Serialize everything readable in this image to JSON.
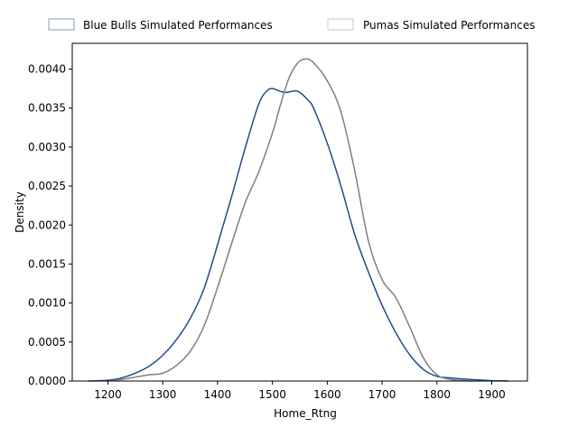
{
  "chart_data": {
    "type": "line",
    "title": "",
    "xlabel": "Home_Rtng",
    "ylabel": "Density",
    "xlim": [
      1135,
      1965
    ],
    "ylim": [
      0,
      0.00433
    ],
    "grid": false,
    "legend_position": "top",
    "x_ticks": [
      1200,
      1300,
      1400,
      1500,
      1600,
      1700,
      1800,
      1900
    ],
    "x_tick_labels": [
      "1200",
      "1300",
      "1400",
      "1500",
      "1600",
      "1700",
      "1800",
      "1900"
    ],
    "y_ticks": [
      0,
      0.0005,
      0.001,
      0.0015,
      0.002,
      0.0025,
      0.003,
      0.0035,
      0.004
    ],
    "y_tick_labels": [
      "0.0000",
      "0.0005",
      "0.0010",
      "0.0015",
      "0.0020",
      "0.0025",
      "0.0030",
      "0.0035",
      "0.0040"
    ],
    "legend": [
      {
        "label": "Blue Bulls Simulated Performances",
        "color": "#7a9cc6"
      },
      {
        "label": "Pumas Simulated Performances",
        "color": "#c8c8c8"
      }
    ],
    "series": [
      {
        "name": "Blue Bulls Simulated Performances",
        "color": "#1f4e8c",
        "points": [
          [
            1165,
            0.0
          ],
          [
            1200,
            1e-05
          ],
          [
            1225,
            4e-05
          ],
          [
            1250,
            0.0001
          ],
          [
            1275,
            0.00019
          ],
          [
            1300,
            0.00033
          ],
          [
            1325,
            0.00053
          ],
          [
            1350,
            0.0008
          ],
          [
            1375,
            0.00118
          ],
          [
            1400,
            0.00175
          ],
          [
            1425,
            0.00235
          ],
          [
            1450,
            0.00298
          ],
          [
            1475,
            0.00355
          ],
          [
            1490,
            0.00372
          ],
          [
            1500,
            0.00375
          ],
          [
            1512,
            0.00372
          ],
          [
            1525,
            0.0037
          ],
          [
            1540,
            0.00372
          ],
          [
            1550,
            0.0037
          ],
          [
            1565,
            0.0036
          ],
          [
            1575,
            0.0035
          ],
          [
            1600,
            0.00305
          ],
          [
            1625,
            0.0025
          ],
          [
            1650,
            0.00188
          ],
          [
            1675,
            0.0014
          ],
          [
            1700,
            0.00097
          ],
          [
            1725,
            0.00062
          ],
          [
            1750,
            0.00034
          ],
          [
            1775,
            0.00015
          ],
          [
            1800,
            6e-05
          ],
          [
            1825,
            4e-05
          ],
          [
            1850,
            2.5e-05
          ],
          [
            1875,
            1.5e-05
          ],
          [
            1900,
            5e-06
          ],
          [
            1930,
            0.0
          ]
        ]
      },
      {
        "name": "Pumas Simulated Performances",
        "color": "#808080",
        "points": [
          [
            1200,
            0.0
          ],
          [
            1225,
            2e-05
          ],
          [
            1250,
            5e-05
          ],
          [
            1275,
            8e-05
          ],
          [
            1300,
            0.0001
          ],
          [
            1325,
            0.0002
          ],
          [
            1350,
            0.00038
          ],
          [
            1375,
            0.0007
          ],
          [
            1400,
            0.0012
          ],
          [
            1425,
            0.00175
          ],
          [
            1450,
            0.00228
          ],
          [
            1475,
            0.00268
          ],
          [
            1500,
            0.00318
          ],
          [
            1515,
            0.00355
          ],
          [
            1530,
            0.00388
          ],
          [
            1545,
            0.00407
          ],
          [
            1560,
            0.00413
          ],
          [
            1575,
            0.00408
          ],
          [
            1600,
            0.00385
          ],
          [
            1625,
            0.00345
          ],
          [
            1650,
            0.0027
          ],
          [
            1675,
            0.0018
          ],
          [
            1700,
            0.0013
          ],
          [
            1725,
            0.00107
          ],
          [
            1750,
            0.0007
          ],
          [
            1775,
            0.0003
          ],
          [
            1800,
            8e-05
          ],
          [
            1825,
            2e-05
          ],
          [
            1850,
            5e-06
          ],
          [
            1870,
            0.0
          ]
        ]
      }
    ]
  }
}
